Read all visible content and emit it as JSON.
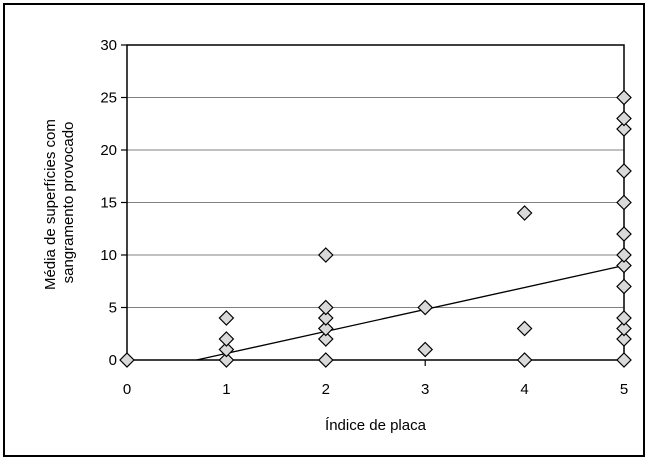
{
  "chart_data": {
    "type": "scatter",
    "title": "",
    "xlabel": "Índice de placa",
    "ylabel_lines": [
      "Média de superfícies com",
      "sangramento provocado"
    ],
    "xlim": [
      0,
      5
    ],
    "ylim": [
      0,
      30
    ],
    "x_ticks": [
      0,
      1,
      2,
      3,
      4,
      5
    ],
    "y_ticks": [
      0,
      5,
      10,
      15,
      20,
      25,
      30
    ],
    "grid": "horizontal",
    "marker": "diamond",
    "colors": {
      "marker_fill": "#d9d9d9",
      "marker_stroke": "#000000",
      "line": "#000000",
      "grid": "#808080"
    },
    "points": [
      {
        "x": 0,
        "y": 0
      },
      {
        "x": 1,
        "y": 0
      },
      {
        "x": 1,
        "y": 1
      },
      {
        "x": 1,
        "y": 2
      },
      {
        "x": 1,
        "y": 4
      },
      {
        "x": 2,
        "y": 0
      },
      {
        "x": 2,
        "y": 2
      },
      {
        "x": 2,
        "y": 3
      },
      {
        "x": 2,
        "y": 4
      },
      {
        "x": 2,
        "y": 5
      },
      {
        "x": 2,
        "y": 10
      },
      {
        "x": 3,
        "y": 1
      },
      {
        "x": 3,
        "y": 5
      },
      {
        "x": 4,
        "y": 0
      },
      {
        "x": 4,
        "y": 3
      },
      {
        "x": 4,
        "y": 14
      },
      {
        "x": 5,
        "y": 0
      },
      {
        "x": 5,
        "y": 2
      },
      {
        "x": 5,
        "y": 3
      },
      {
        "x": 5,
        "y": 4
      },
      {
        "x": 5,
        "y": 7
      },
      {
        "x": 5,
        "y": 9
      },
      {
        "x": 5,
        "y": 10
      },
      {
        "x": 5,
        "y": 12
      },
      {
        "x": 5,
        "y": 15
      },
      {
        "x": 5,
        "y": 18
      },
      {
        "x": 5,
        "y": 22
      },
      {
        "x": 5,
        "y": 23
      },
      {
        "x": 5,
        "y": 25
      }
    ],
    "trendline": {
      "type": "linear",
      "from": {
        "x": 0.7,
        "y": 0
      },
      "to": {
        "x": 5,
        "y": 9
      }
    }
  }
}
